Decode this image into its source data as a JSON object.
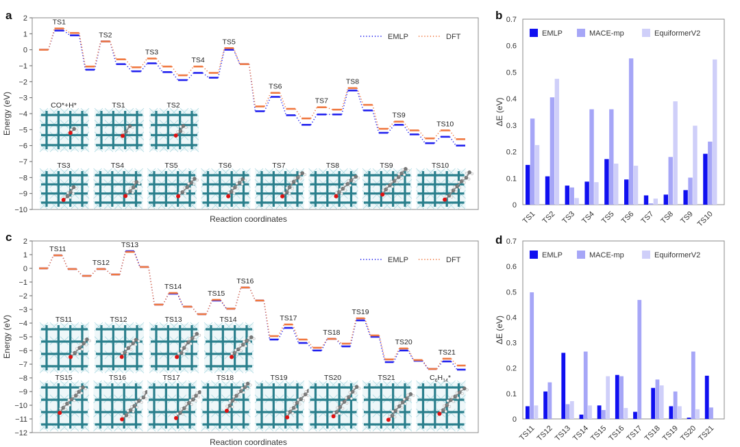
{
  "chart_data": [
    {
      "panel": "a",
      "type": "line",
      "title": "",
      "xlabel": "Reaction coordinates",
      "ylabel": "Energy (eV)",
      "ylim": [
        -10,
        2
      ],
      "yticks": [
        "2",
        "1",
        "0",
        "−1",
        "−2",
        "−3",
        "−4",
        "−5",
        "−6",
        "−7",
        "−8",
        "−9",
        "−10"
      ],
      "ytick_values": [
        2,
        1,
        0,
        -1,
        -2,
        -3,
        -4,
        -5,
        -6,
        -7,
        -8,
        -9,
        -10
      ],
      "legend": [
        "EMLP",
        "DFT"
      ],
      "legend_position": "top-right",
      "series": [
        {
          "name": "EMLP",
          "color": "#2020ee",
          "values": [
            0,
            1.2,
            0.9,
            -1.25,
            0.52,
            -0.9,
            -1.35,
            -0.85,
            -1.4,
            -1.9,
            -1.45,
            -1.75,
            0.0,
            -0.9,
            -3.85,
            -2.95,
            -4.1,
            -4.7,
            -4.05,
            -4.05,
            -2.55,
            -3.8,
            -5.2,
            -4.7,
            -5.3,
            -5.85,
            -5.45,
            -6.0
          ]
        },
        {
          "name": "DFT",
          "color": "#f07840",
          "values": [
            0,
            1.33,
            1.05,
            -1.05,
            0.52,
            -0.6,
            -1.1,
            -0.55,
            -1.05,
            -1.6,
            -1.05,
            -1.45,
            0.1,
            -0.9,
            -3.55,
            -2.7,
            -3.7,
            -4.3,
            -3.6,
            -3.75,
            -2.4,
            -3.45,
            -4.95,
            -4.5,
            -5.05,
            -5.55,
            -5.05,
            -5.6
          ]
        }
      ],
      "ts_labels": [
        {
          "label": "TS1",
          "index": 1
        },
        {
          "label": "TS2",
          "index": 4
        },
        {
          "label": "TS3",
          "index": 7
        },
        {
          "label": "TS4",
          "index": 10
        },
        {
          "label": "TS5",
          "index": 12
        },
        {
          "label": "TS6",
          "index": 15
        },
        {
          "label": "TS7",
          "index": 18
        },
        {
          "label": "TS8",
          "index": 20
        },
        {
          "label": "TS9",
          "index": 23
        },
        {
          "label": "TS10",
          "index": 26
        }
      ],
      "structure_labels_row1": [
        "CO*+H*",
        "TS1",
        "TS2"
      ],
      "structure_labels_row2": [
        "TS3",
        "TS4",
        "TS5",
        "TS6",
        "TS7",
        "TS8",
        "TS9",
        "TS10"
      ]
    },
    {
      "panel": "b",
      "type": "bar",
      "title": "",
      "xlabel": "",
      "ylabel": "ΔE (eV)",
      "ylim": [
        0,
        0.7
      ],
      "yticks": [
        "0",
        "0.1",
        "0.2",
        "0.3",
        "0.4",
        "0.5",
        "0.6",
        "0.7"
      ],
      "ytick_values": [
        0,
        0.1,
        0.2,
        0.3,
        0.4,
        0.5,
        0.6,
        0.7
      ],
      "legend_position": "top",
      "categories": [
        "TS1",
        "TS2",
        "TS3",
        "TS4",
        "TS5",
        "TS6",
        "TS7",
        "TS8",
        "TS9",
        "TS10"
      ],
      "series": [
        {
          "name": "EMLP",
          "color": "#1010f0",
          "values": [
            0.15,
            0.107,
            0.072,
            0.087,
            0.172,
            0.095,
            0.035,
            0.038,
            0.055,
            0.192
          ]
        },
        {
          "name": "MACE-mp",
          "color": "#a6a6f7",
          "values": [
            0.325,
            0.405,
            0.065,
            0.36,
            0.36,
            0.552,
            0.005,
            0.18,
            0.102,
            0.238
          ]
        },
        {
          "name": "EquiformerV2",
          "color": "#cfcff9",
          "values": [
            0.225,
            0.475,
            0.025,
            0.085,
            0.155,
            0.147,
            0.023,
            0.39,
            0.298,
            0.548
          ]
        }
      ]
    },
    {
      "panel": "c",
      "type": "line",
      "title": "",
      "xlabel": "Reaction coordinates",
      "ylabel": "Energy (eV)",
      "ylim": [
        -12,
        2
      ],
      "yticks": [
        "2",
        "1",
        "0",
        "−1",
        "−2",
        "−3",
        "−4",
        "−5",
        "−6",
        "−7",
        "−8",
        "−9",
        "−10",
        "−11",
        "−12"
      ],
      "ytick_values": [
        2,
        1,
        0,
        -1,
        -2,
        -3,
        -4,
        -5,
        -6,
        -7,
        -8,
        -9,
        -10,
        -11,
        -12
      ],
      "legend": [
        "EMLP",
        "DFT"
      ],
      "legend_position": "top-right",
      "series": [
        {
          "name": "EMLP",
          "color": "#2020ee",
          "values": [
            0,
            0.95,
            -0.05,
            -0.55,
            -0.05,
            -0.45,
            1.25,
            0.1,
            -2.65,
            -1.85,
            -2.8,
            -3.35,
            -2.35,
            -2.95,
            -1.4,
            -2.35,
            -5.2,
            -4.35,
            -5.45,
            -6.0,
            -5.15,
            -5.7,
            -3.8,
            -5.0,
            -6.85,
            -6.0,
            -6.75,
            -7.35,
            -6.8,
            -7.4
          ]
        },
        {
          "name": "DFT",
          "color": "#f07840",
          "values": [
            0,
            0.95,
            -0.05,
            -0.55,
            -0.05,
            -0.45,
            1.2,
            0.1,
            -2.65,
            -1.8,
            -2.8,
            -3.35,
            -2.3,
            -2.95,
            -1.4,
            -2.35,
            -4.95,
            -4.1,
            -5.2,
            -5.8,
            -5.15,
            -5.5,
            -3.65,
            -4.9,
            -6.65,
            -5.85,
            -6.7,
            -7.35,
            -6.6,
            -7.1
          ]
        }
      ],
      "ts_labels": [
        {
          "label": "TS11",
          "index": 1
        },
        {
          "label": "TS12",
          "index": 4
        },
        {
          "label": "TS13",
          "index": 6
        },
        {
          "label": "TS14",
          "index": 9
        },
        {
          "label": "TS15",
          "index": 12
        },
        {
          "label": "TS16",
          "index": 14
        },
        {
          "label": "TS17",
          "index": 17
        },
        {
          "label": "TS18",
          "index": 20
        },
        {
          "label": "TS19",
          "index": 22
        },
        {
          "label": "TS20",
          "index": 25
        },
        {
          "label": "TS21",
          "index": 28
        }
      ],
      "structure_labels_row1": [
        "TS11",
        "TS12",
        "TS13",
        "TS14"
      ],
      "structure_labels_row2": [
        "TS15",
        "TS16",
        "TS17",
        "TS18",
        "TS19",
        "TS20",
        "TS21",
        "C6H14*"
      ]
    },
    {
      "panel": "d",
      "type": "bar",
      "title": "",
      "xlabel": "",
      "ylabel": "ΔE (eV)",
      "ylim": [
        0,
        0.7
      ],
      "yticks": [
        "0",
        "0.1",
        "0.2",
        "0.3",
        "0.4",
        "0.5",
        "0.6",
        "0.7"
      ],
      "ytick_values": [
        0,
        0.1,
        0.2,
        0.3,
        0.4,
        0.5,
        0.6,
        0.7
      ],
      "legend_position": "top",
      "categories": [
        "TS11",
        "TS12",
        "TS13",
        "TS14",
        "TS15",
        "TS16",
        "TS17",
        "TS18",
        "TS19",
        "TS20",
        "TS21"
      ],
      "series": [
        {
          "name": "EMLP",
          "color": "#1010f0",
          "values": [
            0.05,
            0.108,
            0.26,
            0.017,
            0.053,
            0.173,
            0.028,
            0.122,
            0.05,
            0.005,
            0.17
          ]
        },
        {
          "name": "MACE-mp",
          "color": "#a6a6f7",
          "values": [
            0.498,
            0.144,
            0.058,
            0.265,
            0.035,
            0.168,
            0.468,
            0.155,
            0.108,
            0.265,
            0.045
          ]
        },
        {
          "name": "EquiformerV2",
          "color": "#cfcff9",
          "values": [
            0.053,
            0,
            0.07,
            0.053,
            0.168,
            0.043,
            0,
            0.132,
            0.05,
            0.038,
            0
          ]
        }
      ]
    }
  ],
  "panel_letters": {
    "a": "a",
    "b": "b",
    "c": "c",
    "d": "d"
  },
  "colors": {
    "emlp_line": "#2020ee",
    "dft_line": "#f07840",
    "emlp_bar": "#1010f0",
    "mace_bar": "#a6a6f7",
    "equiformer_bar": "#cfcff9",
    "slab_dark": "#2a7f8c",
    "slab_light": "#a8d8e0",
    "oxygen": "#e01010",
    "carbon": "#777777",
    "hydrogen": "#f4f4f4"
  }
}
